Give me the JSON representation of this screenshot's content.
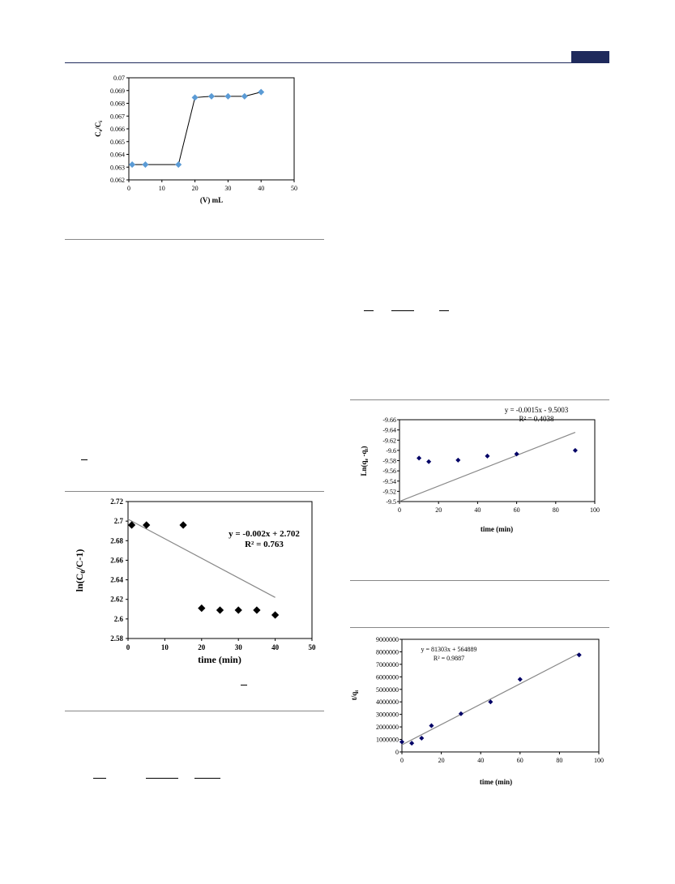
{
  "colors": {
    "header_rule": "#1f2a5c",
    "header_tab": "#1f2a5c",
    "rule": "#888888",
    "fig1_marker": "#5b9bd5",
    "fig_marker_dark": "#000066",
    "fit_line": "#888888"
  },
  "charts": [
    {
      "type": "line",
      "xlabel": "(V) mL",
      "ylabel": "Ce/Ci",
      "xlim": [
        0,
        50
      ],
      "ylim": [
        0.062,
        0.07
      ],
      "xticks": [
        "0",
        "10",
        "20",
        "30",
        "40",
        "50"
      ],
      "yticks": [
        "0.062",
        "0.063",
        "0.064",
        "0.065",
        "0.066",
        "0.067",
        "0.068",
        "0.069",
        "0.07"
      ],
      "series": [
        {
          "x": [
            1,
            5,
            15,
            20,
            25,
            30,
            35,
            40
          ],
          "y": [
            0.0632,
            0.0632,
            0.0632,
            0.06845,
            0.06855,
            0.06855,
            0.06855,
            0.06888
          ]
        }
      ]
    },
    {
      "type": "scatter",
      "xlabel": "time (min)",
      "ylabel": "ln(C0/C-1)",
      "xlim": [
        0,
        50
      ],
      "ylim": [
        2.58,
        2.72
      ],
      "xticks": [
        "0",
        "10",
        "20",
        "30",
        "40",
        "50"
      ],
      "yticks": [
        "2.58",
        "2.6",
        "2.62",
        "2.64",
        "2.66",
        "2.68",
        "2.7",
        "2.72"
      ],
      "series": [
        {
          "x": [
            1,
            5,
            15,
            20,
            25,
            30,
            35,
            40
          ],
          "y": [
            2.696,
            2.696,
            2.696,
            2.611,
            2.609,
            2.609,
            2.609,
            2.604
          ]
        }
      ],
      "fit": {
        "slope": -0.002,
        "intercept": 2.702,
        "x_range": [
          0,
          40
        ]
      },
      "annotations": [
        "y = -0.002x + 2.702",
        "R² = 0.763"
      ]
    },
    {
      "type": "scatter",
      "xlabel": "time (min)",
      "ylabel": "Ln(qe-qt)",
      "xlim": [
        0,
        100
      ],
      "ylim": [
        -9.5,
        -9.66
      ],
      "xticks": [
        "0",
        "20",
        "40",
        "60",
        "80",
        "100"
      ],
      "yticks": [
        "-9.5",
        "-9.52",
        "-9.54",
        "-9.56",
        "-9.58",
        "-9.6",
        "-9.62",
        "-9.64",
        "-9.66"
      ],
      "series": [
        {
          "x": [
            10,
            15,
            30,
            45,
            60,
            90
          ],
          "y": [
            -9.585,
            -9.578,
            -9.581,
            -9.589,
            -9.593,
            -9.6
          ]
        }
      ],
      "fit": {
        "slope": -0.0015,
        "intercept": -9.5003,
        "x_range": [
          0,
          90
        ]
      },
      "annotations": [
        "y = -0.0015x - 9.5003",
        "R² = 0.4038"
      ]
    },
    {
      "type": "scatter",
      "xlabel": "time (min)",
      "ylabel": "t/qt",
      "xlim": [
        0,
        100
      ],
      "ylim": [
        0,
        9000000
      ],
      "xticks": [
        "0",
        "20",
        "40",
        "60",
        "80",
        "100"
      ],
      "yticks": [
        "0",
        "1000000",
        "2000000",
        "3000000",
        "4000000",
        "5000000",
        "6000000",
        "7000000",
        "8000000",
        "9000000"
      ],
      "series": [
        {
          "x": [
            0,
            5,
            10,
            15,
            30,
            45,
            60,
            90
          ],
          "y": [
            800000,
            700000,
            1100000,
            2100000,
            3050000,
            4000000,
            5800000,
            7750000
          ]
        }
      ],
      "fit": {
        "slope": 81303,
        "intercept": 564889,
        "x_range": [
          0,
          90
        ]
      },
      "annotations": [
        "y = 81303x + 564889",
        "R² = 0.9887"
      ]
    }
  ]
}
